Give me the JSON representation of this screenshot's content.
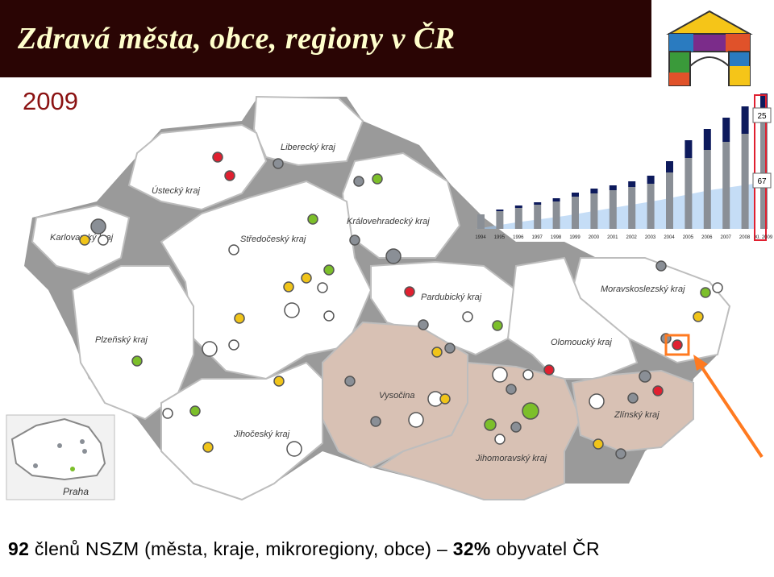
{
  "header": {
    "title": "Zdravá města,  obce, regiony v ČR",
    "year": "2009"
  },
  "regions": [
    "Liberecký kraj",
    "Ústecký kraj",
    "Královehradecký kraj",
    "Karlovarský kraj",
    "Středočeský kraj",
    "Pardubický kraj",
    "Moravskoslezský kraj",
    "Plzeňský kraj",
    "Olomoucký kraj",
    "Vysočina",
    "Jihočeský kraj",
    "Zlínský kraj",
    "Jihomoravský kraj"
  ],
  "inset": {
    "label": "Praha"
  },
  "chart_data": {
    "type": "bar",
    "categories": [
      "1994",
      "1995",
      "1996",
      "1997",
      "1998",
      "1999",
      "2000",
      "2001",
      "2002",
      "2003",
      "2004",
      "2005",
      "2006",
      "2007",
      "2008",
      "XI. 2009"
    ],
    "annotations": [
      "25",
      "67"
    ]
  },
  "footer": {
    "count": "92",
    "text": " členů NSZM (města, kraje, mikroregiony, obce) – ",
    "percent": "32%",
    "tail": " obyvatel ČR"
  },
  "colors": {
    "header_bg": "#2a0504",
    "title": "#ffffcc",
    "year": "#8b1212",
    "highlight_region": "#d8c1b4",
    "marker_red": "#e02030",
    "marker_green": "#7cbf2a",
    "marker_yellow": "#f0c419",
    "marker_gray": "#8a8f96",
    "arrow": "#ff7a20"
  }
}
